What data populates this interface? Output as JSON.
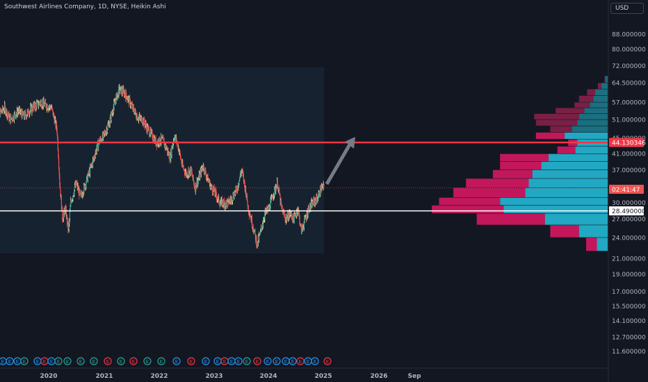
{
  "title": "Southwest Airlines Company, 1D, NYSE, Heikin Ashi",
  "currency": "USD",
  "colors": {
    "background": "#131722",
    "highlight_box": "#162230",
    "candle_up": "#26a69a",
    "candle_down": "#ef5350",
    "candle_line_up": "#e8e6a0",
    "resistance_line": "#f23645",
    "support_line": "#ffffff",
    "arrow": "#787b86",
    "profile_up": "#22a8c2",
    "profile_down": "#c2185b",
    "profile_up_dim": "#1a6f80",
    "profile_down_dim": "#7a1f45",
    "earnings_up": "#2196f3",
    "earnings_down": "#f23645",
    "earnings_neutral": "#26a69a"
  },
  "price_scale": {
    "ticks": [
      "88.000000",
      "80.000000",
      "72.000000",
      "64.500000",
      "57.000000",
      "51.000000",
      "41.000000",
      "37.000000",
      "30.000000",
      "27.000000",
      "24.000000",
      "21.000000",
      "19.000000",
      "17.000000",
      "15.500000",
      "14.100000",
      "12.700000",
      "11.600000"
    ],
    "tick_values": [
      88,
      80,
      72,
      64.5,
      57,
      51,
      41,
      37,
      30,
      27,
      24,
      21,
      19,
      17,
      15.5,
      14.1,
      12.7,
      11.6
    ],
    "scale": "log",
    "hidden_tick": "45.000000",
    "resistance_label": "44.130346",
    "resistance_value": 44.13,
    "countdown_label": "02:41:47",
    "current_value": 33.0,
    "support_label": "28.490000",
    "support_value": 28.49
  },
  "time_scale": {
    "ticks": [
      "2020",
      "2021",
      "2022",
      "2023",
      "2024",
      "2025",
      "2026",
      "Sep"
    ]
  },
  "earnings_label": "E",
  "earnings_events": [
    {
      "kind": "up"
    },
    {
      "kind": "up"
    },
    {
      "kind": "up"
    },
    {
      "kind": "neutral"
    },
    {
      "kind": "up"
    },
    {
      "kind": "down"
    },
    {
      "kind": "up"
    },
    {
      "kind": "neutral"
    },
    {
      "kind": "neutral"
    },
    {
      "kind": "neutral"
    },
    {
      "kind": "neutral"
    },
    {
      "kind": "down"
    },
    {
      "kind": "neutral"
    },
    {
      "kind": "down"
    },
    {
      "kind": "neutral"
    },
    {
      "kind": "neutral"
    },
    {
      "kind": "up"
    },
    {
      "kind": "down"
    },
    {
      "kind": "up"
    },
    {
      "kind": "up"
    },
    {
      "kind": "down"
    },
    {
      "kind": "up"
    },
    {
      "kind": "up"
    },
    {
      "kind": "neutral"
    },
    {
      "kind": "down"
    },
    {
      "kind": "up"
    },
    {
      "kind": "up"
    },
    {
      "kind": "up"
    },
    {
      "kind": "up"
    },
    {
      "kind": "down"
    },
    {
      "kind": "up"
    },
    {
      "kind": "up"
    },
    {
      "kind": "down"
    }
  ],
  "chart_data": {
    "type": "candlestick",
    "title": "Southwest Airlines Company, 1D, NYSE, Heikin Ashi",
    "scale": "log",
    "ylim": [
      11.0,
      96.0
    ],
    "price_path": [
      {
        "t": 2019.0,
        "p": 56
      },
      {
        "t": 2019.1,
        "p": 53
      },
      {
        "t": 2019.2,
        "p": 55
      },
      {
        "t": 2019.3,
        "p": 51
      },
      {
        "t": 2019.45,
        "p": 54
      },
      {
        "t": 2019.55,
        "p": 52
      },
      {
        "t": 2019.7,
        "p": 55
      },
      {
        "t": 2019.85,
        "p": 57
      },
      {
        "t": 2019.95,
        "p": 56
      },
      {
        "t": 2020.05,
        "p": 55
      },
      {
        "t": 2020.15,
        "p": 48
      },
      {
        "t": 2020.2,
        "p": 34
      },
      {
        "t": 2020.25,
        "p": 27
      },
      {
        "t": 2020.3,
        "p": 29
      },
      {
        "t": 2020.36,
        "p": 25
      },
      {
        "t": 2020.4,
        "p": 30
      },
      {
        "t": 2020.5,
        "p": 34
      },
      {
        "t": 2020.58,
        "p": 31
      },
      {
        "t": 2020.67,
        "p": 34
      },
      {
        "t": 2020.75,
        "p": 37
      },
      {
        "t": 2020.82,
        "p": 40
      },
      {
        "t": 2020.9,
        "p": 44
      },
      {
        "t": 2021.0,
        "p": 46
      },
      {
        "t": 2021.1,
        "p": 50
      },
      {
        "t": 2021.2,
        "p": 57
      },
      {
        "t": 2021.28,
        "p": 62
      },
      {
        "t": 2021.35,
        "p": 61
      },
      {
        "t": 2021.42,
        "p": 59
      },
      {
        "t": 2021.5,
        "p": 56
      },
      {
        "t": 2021.6,
        "p": 52
      },
      {
        "t": 2021.7,
        "p": 51
      },
      {
        "t": 2021.8,
        "p": 48
      },
      {
        "t": 2021.88,
        "p": 46
      },
      {
        "t": 2021.95,
        "p": 44
      },
      {
        "t": 2022.05,
        "p": 45
      },
      {
        "t": 2022.12,
        "p": 43
      },
      {
        "t": 2022.2,
        "p": 40
      },
      {
        "t": 2022.28,
        "p": 46
      },
      {
        "t": 2022.35,
        "p": 43
      },
      {
        "t": 2022.42,
        "p": 38
      },
      {
        "t": 2022.5,
        "p": 36
      },
      {
        "t": 2022.58,
        "p": 37
      },
      {
        "t": 2022.65,
        "p": 33
      },
      {
        "t": 2022.72,
        "p": 35
      },
      {
        "t": 2022.8,
        "p": 38
      },
      {
        "t": 2022.88,
        "p": 35
      },
      {
        "t": 2022.95,
        "p": 33
      },
      {
        "t": 2023.02,
        "p": 32
      },
      {
        "t": 2023.1,
        "p": 30
      },
      {
        "t": 2023.18,
        "p": 30
      },
      {
        "t": 2023.25,
        "p": 30
      },
      {
        "t": 2023.33,
        "p": 31
      },
      {
        "t": 2023.42,
        "p": 33
      },
      {
        "t": 2023.5,
        "p": 37
      },
      {
        "t": 2023.55,
        "p": 34
      },
      {
        "t": 2023.62,
        "p": 29
      },
      {
        "t": 2023.7,
        "p": 26
      },
      {
        "t": 2023.78,
        "p": 23
      },
      {
        "t": 2023.85,
        "p": 25
      },
      {
        "t": 2023.92,
        "p": 28
      },
      {
        "t": 2024.0,
        "p": 29
      },
      {
        "t": 2024.08,
        "p": 32
      },
      {
        "t": 2024.15,
        "p": 34
      },
      {
        "t": 2024.22,
        "p": 29
      },
      {
        "t": 2024.3,
        "p": 27
      },
      {
        "t": 2024.38,
        "p": 28
      },
      {
        "t": 2024.45,
        "p": 27
      },
      {
        "t": 2024.52,
        "p": 29
      },
      {
        "t": 2024.58,
        "p": 25
      },
      {
        "t": 2024.65,
        "p": 27
      },
      {
        "t": 2024.72,
        "p": 29
      },
      {
        "t": 2024.8,
        "p": 30
      },
      {
        "t": 2024.88,
        "p": 31
      },
      {
        "t": 2024.95,
        "p": 33
      },
      {
        "t": 2025.0,
        "p": 33
      }
    ],
    "volume_profile": [
      {
        "low": 64.5,
        "high": 67.5,
        "up": 0.012,
        "down": 0.006
      },
      {
        "low": 62.0,
        "high": 64.5,
        "up": 0.035,
        "down": 0.02
      },
      {
        "low": 59.5,
        "high": 62.0,
        "up": 0.07,
        "down": 0.045
      },
      {
        "low": 57.0,
        "high": 59.5,
        "up": 0.08,
        "down": 0.08
      },
      {
        "low": 55.0,
        "high": 57.0,
        "up": 0.1,
        "down": 0.085
      },
      {
        "low": 53.0,
        "high": 55.0,
        "up": 0.13,
        "down": 0.16
      },
      {
        "low": 51.0,
        "high": 53.0,
        "up": 0.16,
        "down": 0.25
      },
      {
        "low": 49.0,
        "high": 51.0,
        "up": 0.17,
        "down": 0.23
      },
      {
        "low": 47.0,
        "high": 49.0,
        "up": 0.2,
        "down": 0.12
      },
      {
        "low": 45.0,
        "high": 47.0,
        "up": 0.24,
        "down": 0.16
      },
      {
        "low": 43.0,
        "high": 45.0,
        "up": 0.17,
        "down": 0.05
      },
      {
        "low": 41.0,
        "high": 43.0,
        "up": 0.18,
        "down": 0.1
      },
      {
        "low": 39.0,
        "high": 41.0,
        "up": 0.33,
        "down": 0.27
      },
      {
        "low": 37.0,
        "high": 39.0,
        "up": 0.37,
        "down": 0.23
      },
      {
        "low": 35.0,
        "high": 37.0,
        "up": 0.42,
        "down": 0.22
      },
      {
        "low": 33.0,
        "high": 35.0,
        "up": 0.44,
        "down": 0.35
      },
      {
        "low": 31.0,
        "high": 33.0,
        "up": 0.46,
        "down": 0.4
      },
      {
        "low": 29.5,
        "high": 31.0,
        "up": 0.6,
        "down": 0.34
      },
      {
        "low": 28.0,
        "high": 29.5,
        "up": 0.58,
        "down": 0.4
      },
      {
        "low": 26.0,
        "high": 28.0,
        "up": 0.35,
        "down": 0.38
      },
      {
        "low": 24.0,
        "high": 26.0,
        "up": 0.16,
        "down": 0.16
      },
      {
        "low": 22.0,
        "high": 24.0,
        "up": 0.06,
        "down": 0.06
      }
    ]
  }
}
